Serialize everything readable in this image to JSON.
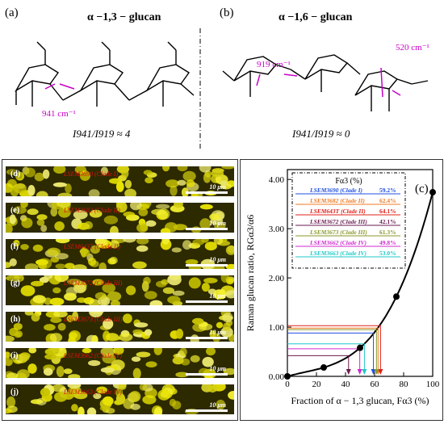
{
  "top": {
    "panel_a": "(a)",
    "panel_b": "(b)",
    "title_a": "α −1,3 − glucan",
    "title_b": "α −1,6 − glucan",
    "ratio_a": "I941/I919 ≈ 4",
    "ratio_b": "I941/I919 ≈ 0",
    "wn_941": "941 cm⁻¹",
    "wn_919": "919 cm⁻¹",
    "wn_520": "520 cm⁻¹",
    "oh": "OH",
    "ho": "HO",
    "o": "O"
  },
  "micro": {
    "scale_text": "10 μm",
    "strips": [
      {
        "label": "(d)",
        "name": "LSEM3690 (Clade I)"
      },
      {
        "label": "(e)",
        "name": "LSEM3682 (Clade II)"
      },
      {
        "label": "(f)",
        "name": "LSEM643T (Clade II)"
      },
      {
        "label": "(g)",
        "name": "LSEM3672 (Clade III)"
      },
      {
        "label": "(h)",
        "name": "LSEM3673 (Clade III)"
      },
      {
        "label": "(i)",
        "name": "LSEM3662 (Clade IV)"
      },
      {
        "label": "(j)",
        "name": "LSEM3663 (Clade IV)"
      }
    ]
  },
  "chart_data": {
    "type": "scatter",
    "panel_label": "(c)",
    "xlabel": "Fraction of α − 1,3 glucan, Fα3 (%)",
    "ylabel": "Raman glucan ratio, RGα3/α6",
    "xlim": [
      0,
      100
    ],
    "ylim": [
      0,
      4.2
    ],
    "xticks": [
      0,
      20,
      40,
      60,
      80,
      100
    ],
    "yticks": [
      0.0,
      1.0,
      2.0,
      3.0,
      4.0
    ],
    "calibration_points": {
      "x": [
        0,
        25,
        50,
        75,
        100
      ],
      "y": [
        0.0,
        0.18,
        0.58,
        1.62,
        3.74
      ]
    },
    "legend_title": "Fα3 (%)",
    "legend": [
      {
        "name": "LSEM3690 (Clade I)",
        "value": "59.2%",
        "x": 59.2,
        "y": 0.88,
        "color": "#1f4fe0"
      },
      {
        "name": "LSEM3682 (Clade II)",
        "value": "62.4%",
        "x": 62.4,
        "y": 0.98,
        "color": "#f07a22"
      },
      {
        "name": "LSEM643T (Clade II)",
        "value": "64.1%",
        "x": 64.1,
        "y": 1.03,
        "color": "#e0201a"
      },
      {
        "name": "LSEM3672 (Clade III)",
        "value": "42.1%",
        "x": 42.1,
        "y": 0.42,
        "color": "#6a1a50"
      },
      {
        "name": "LSEM3673 (Clade III)",
        "value": "61.3%",
        "x": 61.3,
        "y": 0.95,
        "color": "#8a9a2a"
      },
      {
        "name": "LSEM3662 (Clade IV)",
        "value": "49.8%",
        "x": 49.8,
        "y": 0.56,
        "color": "#d02ad0"
      },
      {
        "name": "LSEM3663 (Clade IV)",
        "value": "53.0%",
        "x": 53.0,
        "y": 0.66,
        "color": "#1fc8c8"
      }
    ]
  },
  "colors": {
    "curve": "#000000",
    "magenta": "#c800c8"
  }
}
